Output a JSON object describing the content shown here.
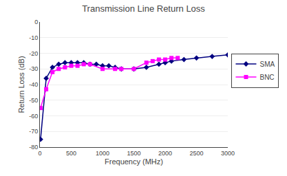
{
  "chart_data": {
    "type": "line",
    "title": "Transmission Line Return Loss",
    "x_label": "Frequency (MHz)",
    "y_label": "Return Loss (dB)",
    "xlim": [
      0,
      3000
    ],
    "ylim": [
      -80,
      0
    ],
    "xticks": [
      0,
      500,
      1000,
      1500,
      2000,
      2500,
      3000
    ],
    "yticks": [
      0,
      -10,
      -20,
      -30,
      -40,
      -50,
      -60,
      -70,
      -80
    ],
    "grid": "y",
    "legend": "right",
    "series": [
      {
        "name": "SMA",
        "color": "#000080",
        "marker": "diamond",
        "line_style": "solid",
        "x": [
          10,
          100,
          200,
          300,
          400,
          500,
          600,
          700,
          800,
          900,
          1000,
          1100,
          1200,
          1300,
          1500,
          1700,
          1900,
          2000,
          2100,
          2300,
          2500,
          2750,
          3000
        ],
        "values": [
          -75,
          -36,
          -29,
          -27,
          -26,
          -26,
          -26,
          -26,
          -27,
          -27,
          -28,
          -28,
          -29,
          -30,
          -30,
          -29,
          -27,
          -26,
          -25,
          -24,
          -23,
          -22,
          -21
        ]
      },
      {
        "name": "BNC",
        "color": "#FF00FF",
        "marker": "square",
        "line_style": "solid",
        "x": [
          10,
          100,
          200,
          300,
          400,
          500,
          600,
          700,
          800,
          1000,
          1200,
          1300,
          1500,
          1700,
          1800,
          1900,
          2000,
          2100,
          2200
        ],
        "values": [
          -55,
          -43,
          -32,
          -30,
          -29,
          -28,
          -28,
          -27,
          -27,
          -30,
          -30,
          -30,
          -30,
          -26,
          -25,
          -24,
          -24,
          -23,
          -23
        ]
      }
    ]
  }
}
